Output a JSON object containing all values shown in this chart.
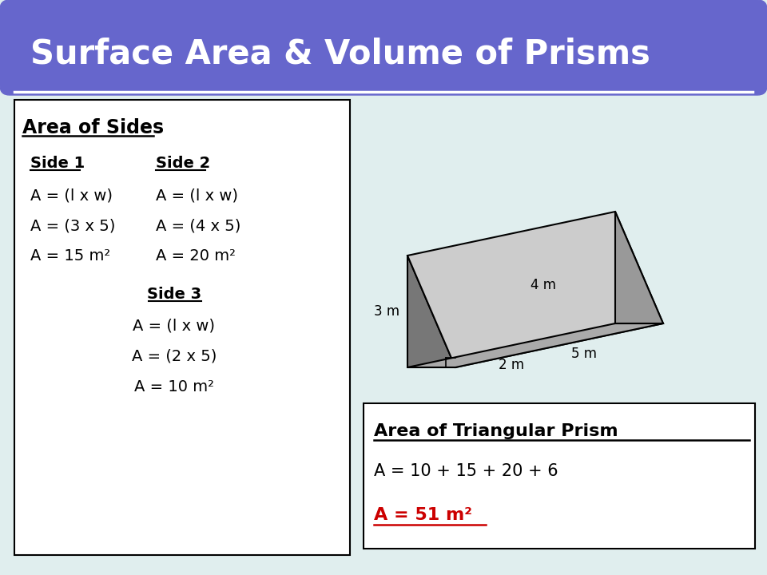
{
  "title": "Surface Area & Volume of Prisms",
  "title_color": "#ffffff",
  "title_bg_color": "#6666cc",
  "bg_color": "#e0eeee",
  "border_color": "#5599aa",
  "left_box_title": "Area of Sides",
  "right_box_title": "Area of Triangular Prism",
  "right_line1": "A = 10 + 15 + 20 + 6",
  "right_line2": "A = 51 m²",
  "right_line2_color": "#cc0000",
  "prism_labels": [
    "4 m",
    "3 m",
    "5 m",
    "2 m"
  ]
}
